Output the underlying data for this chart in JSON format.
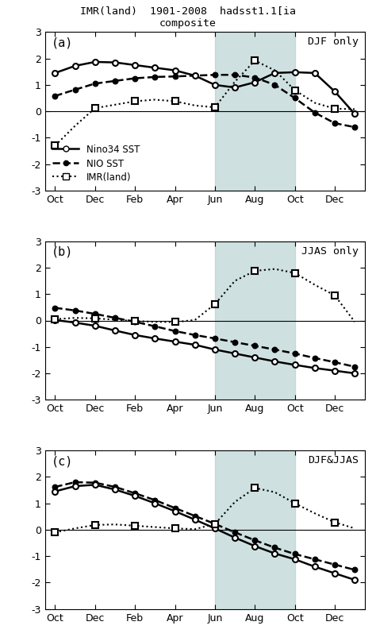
{
  "title_line1": "IMR(land)  1901-2008  hadsst1.1[ia",
  "title_line2": "composite",
  "subtitle_a": "DJF only",
  "subtitle_b": "JJAS only",
  "subtitle_c": "DJF&JJAS",
  "x_labels": [
    "Oct",
    "Dec",
    "Feb",
    "Apr",
    "Jun",
    "Aug",
    "Oct",
    "Dec"
  ],
  "x_ticks": [
    0,
    2,
    4,
    6,
    8,
    10,
    12,
    14
  ],
  "panel_a": {
    "label": "(a)",
    "nino34_x": [
      0,
      1,
      2,
      3,
      4,
      5,
      6,
      7,
      8,
      9,
      10,
      11,
      12,
      13,
      14,
      15
    ],
    "nino34": [
      1.45,
      1.72,
      1.87,
      1.85,
      1.75,
      1.65,
      1.55,
      1.35,
      1.0,
      0.9,
      1.1,
      1.45,
      1.48,
      1.45,
      0.75,
      -0.1
    ],
    "nio_x": [
      0,
      1,
      2,
      3,
      4,
      5,
      6,
      7,
      8,
      9,
      10,
      11,
      12,
      13,
      14,
      15
    ],
    "nio": [
      0.58,
      0.82,
      1.05,
      1.15,
      1.25,
      1.3,
      1.32,
      1.35,
      1.38,
      1.38,
      1.28,
      1.0,
      0.5,
      -0.05,
      -0.45,
      -0.6
    ],
    "imr_x": [
      0,
      1,
      2,
      3,
      4,
      5,
      6,
      7,
      8,
      9,
      10,
      11,
      12,
      13,
      14,
      15
    ],
    "imr": [
      -1.3,
      -0.55,
      0.12,
      0.25,
      0.38,
      0.44,
      0.38,
      0.22,
      0.15,
      1.12,
      1.92,
      1.55,
      0.8,
      0.32,
      0.1,
      0.08
    ]
  },
  "panel_b": {
    "label": "(b)",
    "nino34_x": [
      0,
      1,
      2,
      3,
      4,
      5,
      6,
      7,
      8,
      9,
      10,
      11,
      12,
      13,
      14,
      15
    ],
    "nino34": [
      0.02,
      -0.08,
      -0.2,
      -0.38,
      -0.55,
      -0.68,
      -0.8,
      -0.92,
      -1.1,
      -1.25,
      -1.4,
      -1.55,
      -1.68,
      -1.8,
      -1.9,
      -2.0
    ],
    "nio_x": [
      0,
      1,
      2,
      3,
      4,
      5,
      6,
      7,
      8,
      9,
      10,
      11,
      12,
      13,
      14,
      15
    ],
    "nio": [
      0.48,
      0.38,
      0.25,
      0.1,
      -0.05,
      -0.22,
      -0.4,
      -0.55,
      -0.68,
      -0.82,
      -0.96,
      -1.1,
      -1.25,
      -1.42,
      -1.58,
      -1.75
    ],
    "imr_x": [
      0,
      1,
      2,
      3,
      4,
      5,
      6,
      7,
      8,
      9,
      10,
      11,
      12,
      13,
      14,
      15
    ],
    "imr": [
      0.05,
      0.1,
      0.08,
      0.03,
      -0.02,
      -0.05,
      -0.06,
      0.02,
      0.62,
      1.5,
      1.88,
      1.95,
      1.8,
      1.35,
      0.95,
      -0.05
    ]
  },
  "panel_c": {
    "label": "(c)",
    "nino34_x": [
      0,
      1,
      2,
      3,
      4,
      5,
      6,
      7,
      8,
      9,
      10,
      11,
      12,
      13,
      14,
      15
    ],
    "nino34": [
      1.45,
      1.65,
      1.7,
      1.52,
      1.28,
      1.0,
      0.7,
      0.38,
      0.05,
      -0.3,
      -0.62,
      -0.9,
      -1.12,
      -1.4,
      -1.65,
      -1.9
    ],
    "nio_x": [
      0,
      1,
      2,
      3,
      4,
      5,
      6,
      7,
      8,
      9,
      10,
      11,
      12,
      13,
      14,
      15
    ],
    "nio": [
      1.62,
      1.8,
      1.78,
      1.62,
      1.38,
      1.12,
      0.82,
      0.52,
      0.22,
      -0.1,
      -0.4,
      -0.68,
      -0.92,
      -1.12,
      -1.32,
      -1.52
    ],
    "imr_x": [
      0,
      1,
      2,
      3,
      4,
      5,
      6,
      7,
      8,
      9,
      10,
      11,
      12,
      13,
      14,
      15
    ],
    "imr": [
      -0.1,
      0.05,
      0.18,
      0.2,
      0.15,
      0.1,
      0.05,
      0.02,
      0.22,
      1.05,
      1.58,
      1.42,
      1.0,
      0.62,
      0.28,
      0.05
    ]
  },
  "x_positions": [
    0,
    1,
    2,
    3,
    4,
    5,
    6,
    7,
    8,
    9,
    10,
    11,
    12,
    13,
    14,
    15
  ],
  "shade_start": 8,
  "shade_end": 12,
  "ylim": [
    -3,
    3
  ],
  "yticks": [
    -3,
    -2,
    -1,
    0,
    1,
    2,
    3
  ],
  "ytick_labels": [
    "-3",
    "-2",
    "-1",
    "0",
    "1",
    "2",
    "3"
  ],
  "shade_color": "#a8c8c8",
  "shade_alpha": 0.55,
  "bg_color": "white"
}
